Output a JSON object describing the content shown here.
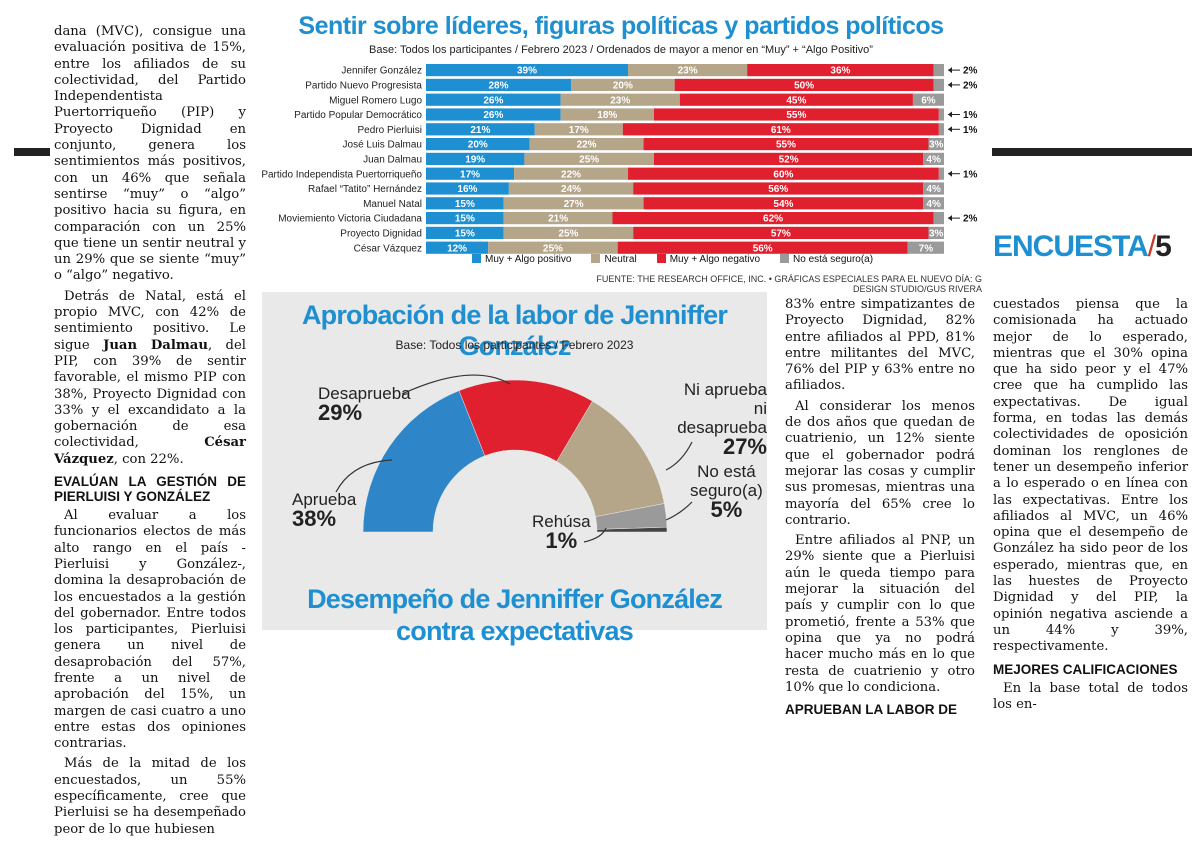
{
  "column1": {
    "p1": "dana (MVC), consigue una evaluación positiva de 15%, entre los afiliados de su colectividad, del Partido Independentista Puertorriqueño (PIP) y Proyecto Dignidad en conjunto, genera los sentimientos más positivos, con un 46% que señala sentirse “muy” o “algo” positivo hacia su figura, en comparación con un 25% que tiene un sentir neutral y un 29% que se siente “muy” o “algo” negativo.",
    "p2a": "Detrás de Natal, está el propio MVC, con 42% de sentimiento positivo. Le sigue ",
    "p2b": "Juan Dalmau",
    "p2c": ", del PIP, con 39% de sentir favorable, el mismo PIP con 38%, Proyecto Dignidad con 33% y el excandidato a la gobernación de esa colectividad, ",
    "p2d": "César Vázquez",
    "p2e": ", con 22%.",
    "heading": "EVALÚAN LA GESTIÓN DE PIERLUISI Y GONZÁLEZ",
    "p3": "Al evaluar a los funcionarios electos de más alto rango en el país -Pierluisi y González-, domina la desaprobación de los encuestados a la gestión del gobernador. Entre todos los participantes, Pierluisi genera un nivel de desaprobación del 57%, frente a un nivel de aprobación del 15%, un margen de casi cuatro a uno entre estas dos opiniones contrarias.",
    "p4": "Más de la mitad de los encuestados, un 55% específicamente, cree que Pierluisi se ha desempeñado peor de lo que hubiesen"
  },
  "column3": {
    "p1": "83% entre simpatizantes de Proyecto Dignidad, 82% entre afiliados al PPD, 81% entre militantes del MVC, 76% del PIP y 63% entre no afiliados.",
    "p2": "Al considerar los menos de dos años que quedan de cuatrienio, un 12% siente que el gobernador podrá mejorar las cosas y cumplir sus promesas, mientras una mayoría del 65% cree lo contrario.",
    "p3": "Entre afiliados al PNP, un 29% siente que a Pierluisi aún le queda tiempo para mejorar la situación del país y cumplir con lo que prometió, frente a 53% que opina que ya no podrá hacer mucho más en lo que resta de cuatrienio y otro 10% que lo condiciona.",
    "heading": "APRUEBAN LA LABOR DE"
  },
  "column4": {
    "p1": "cuestados piensa que la comisionada ha actuado mejor de lo esperado, mientras que el 30% opina que ha sido peor y el 47% cree que ha cumplido las expectativas. De igual forma, en todas las demás colectividades de oposición dominan los renglones de tener un desempeño inferior a lo esperado o en línea con las expectativas. Entre los afiliados al MVC, un 46% opina que el desempeño de González ha sido peor de los esperado, mientras que, en las huestes de Proyecto Dignidad y del PIP, la opinión negativa asciende a un 44% y 39%, respectivamente.",
    "heading": "MEJORES CALIFICACIONES",
    "p2": "En la base total de todos los en-"
  },
  "badge": {
    "word": "ENCUESTA",
    "slash": "/",
    "number": "5"
  },
  "chart_data": [
    {
      "type": "bar",
      "orientation": "horizontal-stacked",
      "title": "Sentir sobre líderes, figuras políticas y partidos políticos",
      "subtitle": "Base: Todos los participantes / Febrero 2023 / Ordenados de mayor a menor en “Muy” + “Algo Positivo”",
      "source": "FUENTE: THE RESEARCH OFFICE, INC. • GRÁFICAS ESPECIALES PARA EL NUEVO DÍA: G DESIGN STUDIO/GUS RIVERA",
      "colors": [
        "#1e8fd0",
        "#b5a68a",
        "#e0202e",
        "#9a9a9a"
      ],
      "legend_position": "bottom",
      "categories": [
        "Jennifer González",
        "Partido Nuevo Progresista",
        "Miguel Romero Lugo",
        "Partido Popular Democrático",
        "Pedro Pierluisi",
        "José Luis Dalmau",
        "Juan Dalmau",
        "Partido Independista Puertorriqueño",
        "Rafael “Tatito” Hernández",
        "Manuel Natal",
        "Moviemiento Victoria Ciudadana",
        "Proyecto Dignidad",
        "César Vázquez"
      ],
      "series": [
        {
          "name": "Muy + Algo positivo",
          "values": [
            39,
            28,
            26,
            26,
            21,
            20,
            19,
            17,
            16,
            15,
            15,
            15,
            12
          ]
        },
        {
          "name": "Neutral",
          "values": [
            23,
            20,
            23,
            18,
            17,
            22,
            25,
            22,
            24,
            27,
            21,
            25,
            25
          ]
        },
        {
          "name": "Muy + Algo negativo",
          "values": [
            36,
            50,
            45,
            55,
            61,
            55,
            52,
            60,
            56,
            54,
            62,
            57,
            56
          ]
        },
        {
          "name": "No está seguro(a)",
          "values": [
            2,
            2,
            6,
            1,
            1,
            3,
            4,
            1,
            4,
            4,
            2,
            3,
            7
          ]
        }
      ],
      "value_labels": [
        [
          "39%",
          "23%",
          "36%",
          "2%"
        ],
        [
          "28%",
          "20%",
          "50%",
          "2%"
        ],
        [
          "26%",
          "23%",
          "45%",
          "6%"
        ],
        [
          "26%",
          "18%",
          "55%",
          "1%"
        ],
        [
          "21%",
          "17%",
          "61%",
          "1%"
        ],
        [
          "20%",
          "22%",
          "55%",
          "3%"
        ],
        [
          "19%",
          "25%",
          "52%",
          "4%"
        ],
        [
          "17%",
          "22%",
          "60%",
          "1%"
        ],
        [
          "16%",
          "24%",
          "56%",
          "4%"
        ],
        [
          "15%",
          "27%",
          "54%",
          "4%"
        ],
        [
          "15%",
          "21%",
          "62%",
          "2%"
        ],
        [
          "15%",
          "25%",
          "57%",
          "3%"
        ],
        [
          "12%",
          "25%",
          "56%",
          "7%"
        ]
      ],
      "outside_labels": [
        0,
        1,
        3,
        4,
        7,
        10
      ]
    },
    {
      "type": "pie",
      "variant": "semicircle",
      "title": "Aprobación de la labor de Jenniffer González",
      "subtitle": "Base: Todos los participantes / Febrero 2023",
      "categories": [
        "Aprueba",
        "Desaprueba",
        "Ni aprueba ni desaprueba",
        "No está seguro(a)",
        "Rehúsa"
      ],
      "values": [
        38,
        29,
        27,
        5,
        1
      ],
      "value_labels": [
        "38%",
        "29%",
        "27%",
        "5%",
        "1%"
      ],
      "colors": [
        "#2e86c8",
        "#e0202e",
        "#b5a68a",
        "#9a9a9a",
        "#444444"
      ]
    }
  ],
  "chart2_labels": {
    "aprueba": "Aprueba",
    "aprueba_pct": "38%",
    "desaprueba": "Desaprueba",
    "desaprueba_pct": "29%",
    "ni1": "Ni aprueba",
    "ni2": "ni desaprueba",
    "ni_pct": "27%",
    "ne1": "No está",
    "ne2": "seguro(a)",
    "ne_pct": "5%",
    "rehusa": "Rehúsa",
    "rehusa_pct": "1%"
  },
  "chart3": {
    "title_line1": "Desempeño de Jenniffer González",
    "title_line2": "contra expectativas"
  }
}
